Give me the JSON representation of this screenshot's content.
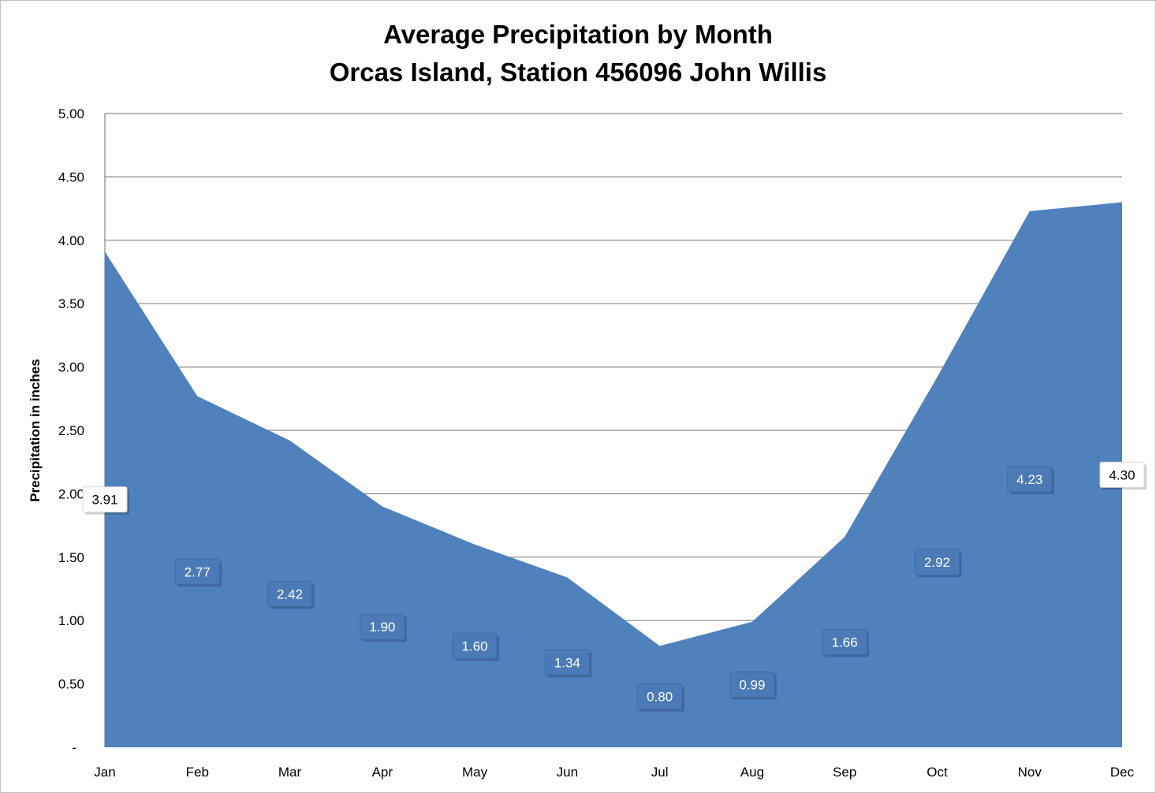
{
  "chart_data": {
    "type": "area",
    "title": "Average Precipitation by Month",
    "subtitle": "Orcas Island, Station 456096 John Willis",
    "xlabel": "",
    "ylabel": "Precipitation in inches",
    "categories": [
      "Jan",
      "Feb",
      "Mar",
      "Apr",
      "May",
      "Jun",
      "Jul",
      "Aug",
      "Sep",
      "Oct",
      "Nov",
      "Dec"
    ],
    "values": [
      3.91,
      2.77,
      2.42,
      1.9,
      1.6,
      1.34,
      0.8,
      0.99,
      1.66,
      2.92,
      4.23,
      4.3
    ],
    "data_labels": [
      "3.91",
      "2.77",
      "2.42",
      "1.90",
      "1.60",
      "1.34",
      "0.80",
      "0.99",
      "1.66",
      "2.92",
      "4.23",
      "4.30"
    ],
    "ylim": [
      0,
      5
    ],
    "y_ticks": [
      0,
      0.5,
      1,
      1.5,
      2,
      2.5,
      3,
      3.5,
      4,
      4.5,
      5
    ],
    "y_tick_labels": [
      "-",
      "0.50",
      "1.00",
      "1.50",
      "2.00",
      "2.50",
      "3.00",
      "3.50",
      "4.00",
      "4.50",
      "5.00"
    ],
    "grid": true,
    "legend": "none",
    "colors": {
      "area": "#4f81bd",
      "gridline": "#868686",
      "label_fill_dark": "#4a7bb7",
      "label_fill_light": "#ffffff"
    }
  }
}
